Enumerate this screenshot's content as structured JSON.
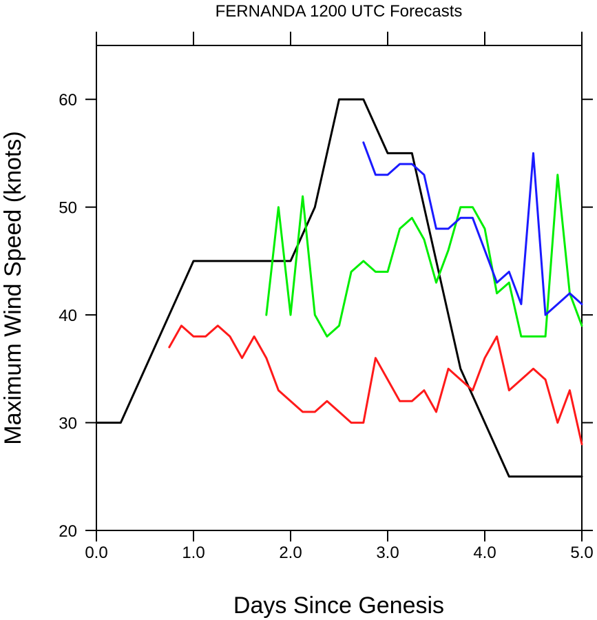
{
  "chart_data": {
    "type": "line",
    "title": "FERNANDA 1200 UTC Forecasts",
    "xlabel": "Days Since Genesis",
    "ylabel": "Maximum Wind Speed (knots)",
    "xlim": [
      0,
      5
    ],
    "ylim": [
      20,
      65
    ],
    "xticks": [
      0,
      1,
      2,
      3,
      4,
      5
    ],
    "xtick_labels": [
      "0.0",
      "1.0",
      "2.0",
      "3.0",
      "4.0",
      "5.0"
    ],
    "yticks": [
      20,
      30,
      40,
      50,
      60
    ],
    "ytick_labels": [
      "20",
      "30",
      "40",
      "50",
      "60"
    ],
    "grid": false,
    "legend": "none",
    "series": [
      {
        "color": "#000000",
        "points": [
          [
            0,
            30
          ],
          [
            0.25,
            30
          ],
          [
            1.0,
            45
          ],
          [
            2.0,
            45
          ],
          [
            2.25,
            50
          ],
          [
            2.5,
            60
          ],
          [
            2.75,
            60
          ],
          [
            3.0,
            55
          ],
          [
            3.25,
            55
          ],
          [
            3.75,
            35
          ],
          [
            4.25,
            25
          ],
          [
            5.0,
            25
          ]
        ]
      },
      {
        "color": "#ff1a1a",
        "points": [
          [
            0.75,
            37
          ],
          [
            0.875,
            39
          ],
          [
            1.0,
            38
          ],
          [
            1.125,
            38
          ],
          [
            1.25,
            39
          ],
          [
            1.375,
            38
          ],
          [
            1.5,
            36
          ],
          [
            1.625,
            38
          ],
          [
            1.75,
            36
          ],
          [
            1.875,
            33
          ],
          [
            2.0,
            32
          ],
          [
            2.125,
            31
          ],
          [
            2.25,
            31
          ],
          [
            2.375,
            32
          ],
          [
            2.5,
            31
          ],
          [
            2.625,
            30
          ],
          [
            2.75,
            30
          ],
          [
            2.875,
            36
          ],
          [
            3.0,
            34
          ],
          [
            3.125,
            32
          ],
          [
            3.25,
            32
          ],
          [
            3.375,
            33
          ],
          [
            3.5,
            31
          ],
          [
            3.625,
            35
          ],
          [
            3.75,
            34
          ],
          [
            3.875,
            33
          ],
          [
            4.0,
            36
          ],
          [
            4.125,
            38
          ],
          [
            4.25,
            33
          ],
          [
            4.375,
            34
          ],
          [
            4.5,
            35
          ],
          [
            4.625,
            34
          ],
          [
            4.75,
            30
          ],
          [
            4.875,
            33
          ],
          [
            5.0,
            28
          ]
        ]
      },
      {
        "color": "#00ee00",
        "points": [
          [
            1.75,
            40
          ],
          [
            1.875,
            50
          ],
          [
            2.0,
            40
          ],
          [
            2.125,
            51
          ],
          [
            2.25,
            40
          ],
          [
            2.375,
            38
          ],
          [
            2.5,
            39
          ],
          [
            2.625,
            44
          ],
          [
            2.75,
            45
          ],
          [
            2.875,
            44
          ],
          [
            3.0,
            44
          ],
          [
            3.125,
            48
          ],
          [
            3.25,
            49
          ],
          [
            3.375,
            47
          ],
          [
            3.5,
            43
          ],
          [
            3.625,
            46
          ],
          [
            3.75,
            50
          ],
          [
            3.875,
            50
          ],
          [
            4.0,
            48
          ],
          [
            4.125,
            42
          ],
          [
            4.25,
            43
          ],
          [
            4.375,
            38
          ],
          [
            4.5,
            38
          ],
          [
            4.625,
            38
          ],
          [
            4.75,
            53
          ],
          [
            4.875,
            42
          ],
          [
            5.0,
            39
          ]
        ]
      },
      {
        "color": "#1a1aff",
        "points": [
          [
            2.75,
            56
          ],
          [
            2.875,
            53
          ],
          [
            3.0,
            53
          ],
          [
            3.125,
            54
          ],
          [
            3.25,
            54
          ],
          [
            3.375,
            53
          ],
          [
            3.5,
            48
          ],
          [
            3.625,
            48
          ],
          [
            3.75,
            49
          ],
          [
            3.875,
            49
          ],
          [
            4.0,
            46
          ],
          [
            4.125,
            43
          ],
          [
            4.25,
            44
          ],
          [
            4.375,
            41
          ],
          [
            4.5,
            55
          ],
          [
            4.625,
            40
          ],
          [
            4.75,
            41
          ],
          [
            4.875,
            42
          ],
          [
            5.0,
            41
          ]
        ]
      }
    ]
  }
}
